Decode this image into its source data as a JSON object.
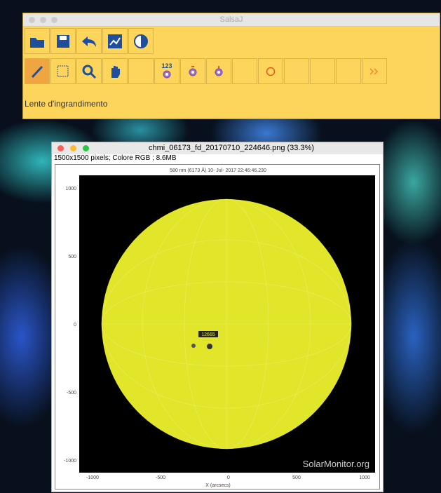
{
  "app_window": {
    "title": "SalsaJ",
    "counter_label": "123",
    "status_text": "Lente d'ingrandimento"
  },
  "image_window": {
    "title": "chmi_06173_fd_20170710_224646.png (33.3%)",
    "info": "1500x1500 pixels; Colore RGB ; 8.6MB"
  },
  "plot": {
    "title": "580 nm (6173 Å) 10- Jul- 2017 22:46:46.230",
    "yticks": [
      "1000",
      "500",
      "0",
      "-500",
      "-1000"
    ],
    "xticks": [
      "-1000",
      "-500",
      "0",
      "500",
      "1000"
    ],
    "x_label": "X (arcsecs)",
    "region_label": "12665",
    "watermark": "SolarMonitor.org"
  }
}
